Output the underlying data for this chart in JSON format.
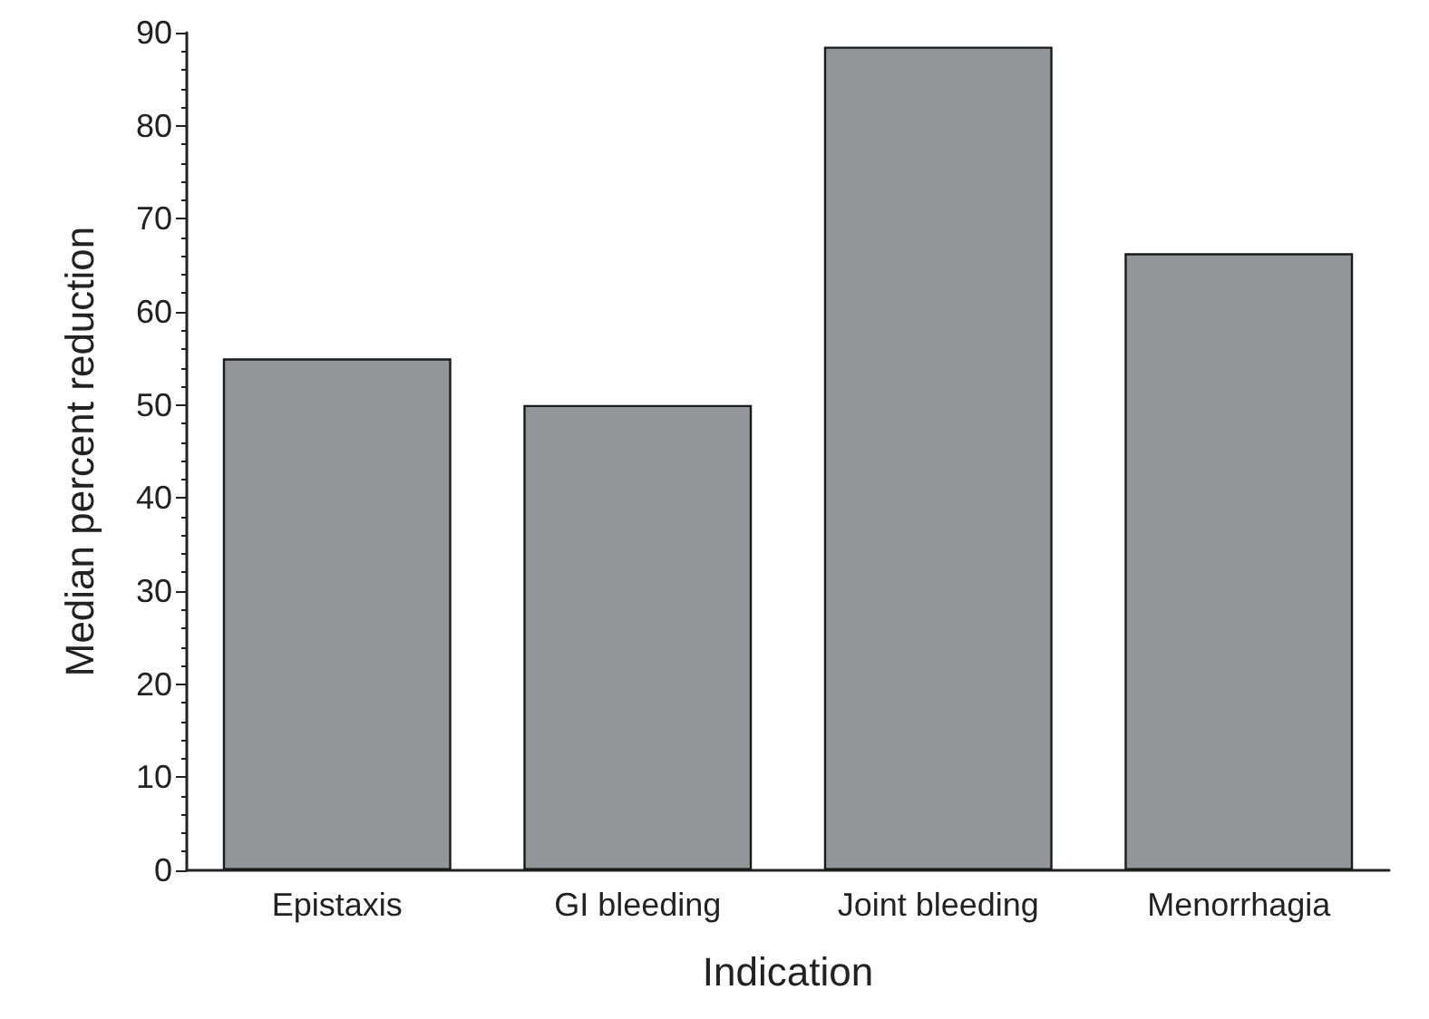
{
  "chart_data": {
    "type": "bar",
    "xlabel": "Indication",
    "ylabel": "Median percent reduction",
    "categories": [
      "Epistaxis",
      "GI bleeding",
      "Joint bleeding",
      "Menorrhagia"
    ],
    "values": [
      55,
      50,
      88.5,
      66.3
    ],
    "color": "#939598",
    "ylim": [
      0,
      90
    ],
    "yticks": [
      0,
      10,
      20,
      30,
      40,
      50,
      60,
      70,
      80,
      90
    ],
    "grid": false
  }
}
